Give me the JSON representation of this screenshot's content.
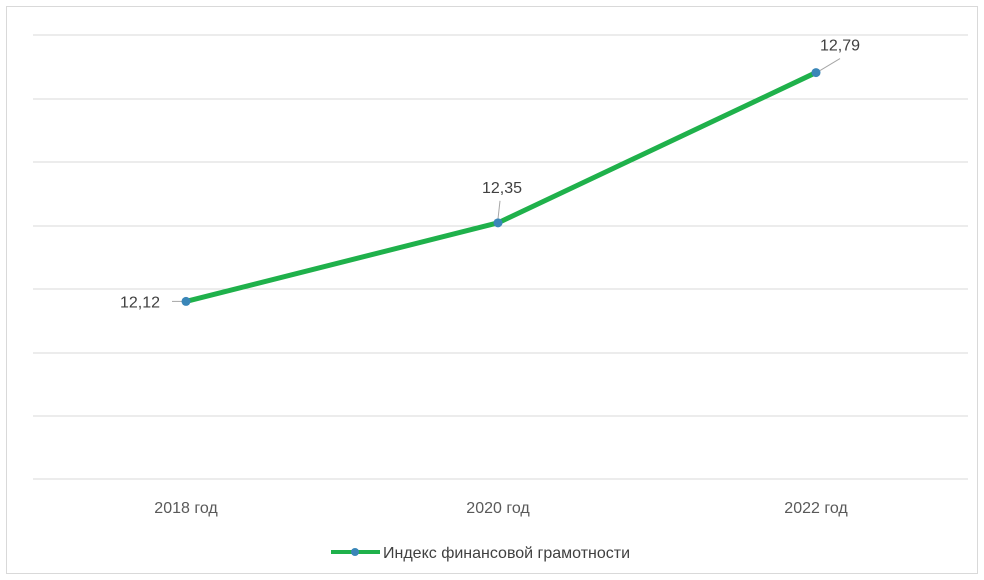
{
  "chart_data": {
    "type": "line",
    "categories": [
      "2018 год",
      "2020 год",
      "2022 год"
    ],
    "series": [
      {
        "name": "Индекс финансовой грамотности",
        "values": [
          12.12,
          12.35,
          12.79
        ],
        "labels": [
          "12,12",
          "12,35",
          "12,79"
        ],
        "color": "#1fb14b",
        "marker_color": "#3a86b8"
      }
    ],
    "title": "",
    "xlabel": "",
    "ylabel": "",
    "ylim": [
      11.6,
      12.9
    ],
    "grid": true,
    "legend_position": "bottom",
    "y_axis_labels_visible": false
  }
}
